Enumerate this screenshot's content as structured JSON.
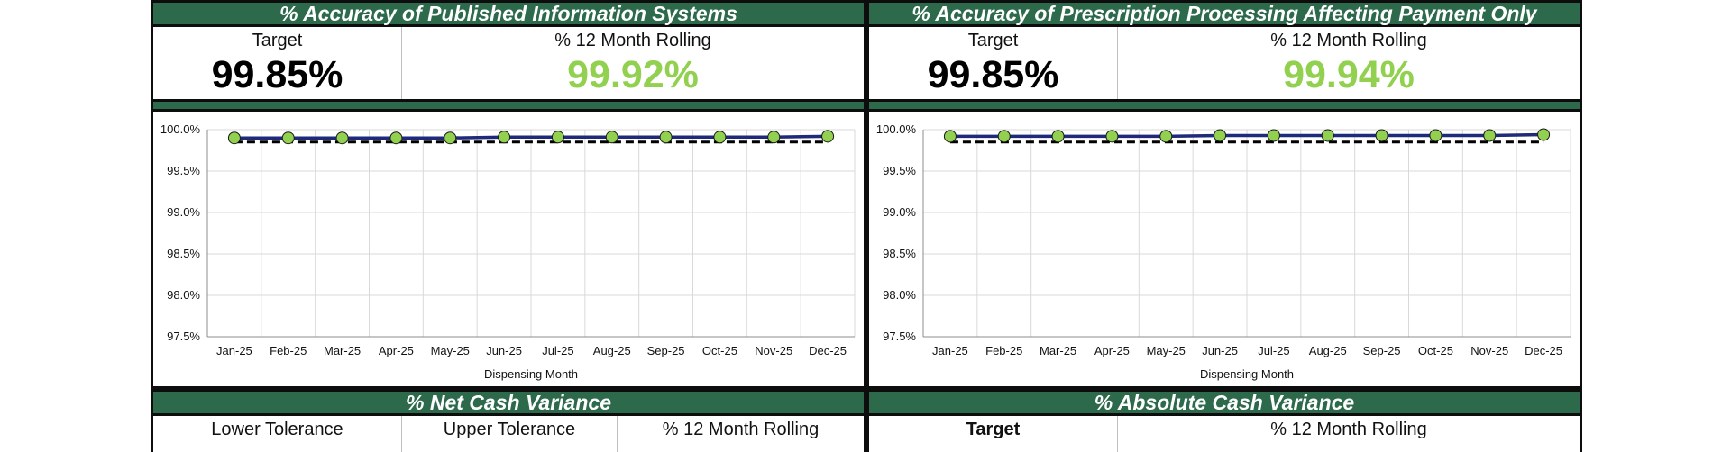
{
  "colors": {
    "header": "#2d6a4b",
    "actual_line": "#1f2a7a",
    "marker": "#92d050",
    "target_line": "#000000",
    "value_green": "#92d050"
  },
  "panels": [
    {
      "title": "% Accuracy of Published Information Systems",
      "target_label": "Target",
      "target_value": "99.85%",
      "rolling_label": "% 12 Month Rolling",
      "rolling_value": "99.92%"
    },
    {
      "title": "% Accuracy of Prescription Processing Affecting Payment Only",
      "target_label": "Target",
      "target_value": "99.85%",
      "rolling_label": "% 12 Month Rolling",
      "rolling_value": "99.94%"
    }
  ],
  "bottom_panels": [
    {
      "title": "% Net Cash Variance",
      "labels": [
        "Lower Tolerance",
        "Upper Tolerance",
        "% 12 Month Rolling"
      ]
    },
    {
      "title": "% Absolute Cash Variance",
      "labels": [
        "Target",
        "% 12 Month Rolling"
      ]
    }
  ],
  "chart_data": [
    {
      "type": "line",
      "categories": [
        "Jan-25",
        "Feb-25",
        "Mar-25",
        "Apr-25",
        "May-25",
        "Jun-25",
        "Jul-25",
        "Aug-25",
        "Sep-25",
        "Oct-25",
        "Nov-25",
        "Dec-25"
      ],
      "series": [
        {
          "values": [
            99.9,
            99.9,
            99.9,
            99.9,
            99.9,
            99.91,
            99.91,
            99.91,
            99.91,
            99.91,
            99.91,
            99.92
          ],
          "style": "solid-with-markers"
        },
        {
          "values": [
            99.85,
            99.85,
            99.85,
            99.85,
            99.85,
            99.85,
            99.85,
            99.85,
            99.85,
            99.85,
            99.85,
            99.85
          ],
          "style": "dashed"
        }
      ],
      "xlabel": "Dispensing Month",
      "ylabel": "",
      "yticks": [
        "97.5%",
        "98.0%",
        "98.5%",
        "99.0%",
        "99.5%",
        "100.0%"
      ],
      "ylim": [
        97.5,
        100.0
      ],
      "grid": true
    },
    {
      "type": "line",
      "categories": [
        "Jan-25",
        "Feb-25",
        "Mar-25",
        "Apr-25",
        "May-25",
        "Jun-25",
        "Jul-25",
        "Aug-25",
        "Sep-25",
        "Oct-25",
        "Nov-25",
        "Dec-25"
      ],
      "series": [
        {
          "values": [
            99.92,
            99.92,
            99.92,
            99.92,
            99.92,
            99.93,
            99.93,
            99.93,
            99.93,
            99.93,
            99.93,
            99.94
          ],
          "style": "solid-with-markers"
        },
        {
          "values": [
            99.85,
            99.85,
            99.85,
            99.85,
            99.85,
            99.85,
            99.85,
            99.85,
            99.85,
            99.85,
            99.85,
            99.85
          ],
          "style": "dashed"
        }
      ],
      "xlabel": "Dispensing Month",
      "ylabel": "",
      "yticks": [
        "97.5%",
        "98.0%",
        "98.5%",
        "99.0%",
        "99.5%",
        "100.0%"
      ],
      "ylim": [
        97.5,
        100.0
      ],
      "grid": true
    }
  ]
}
